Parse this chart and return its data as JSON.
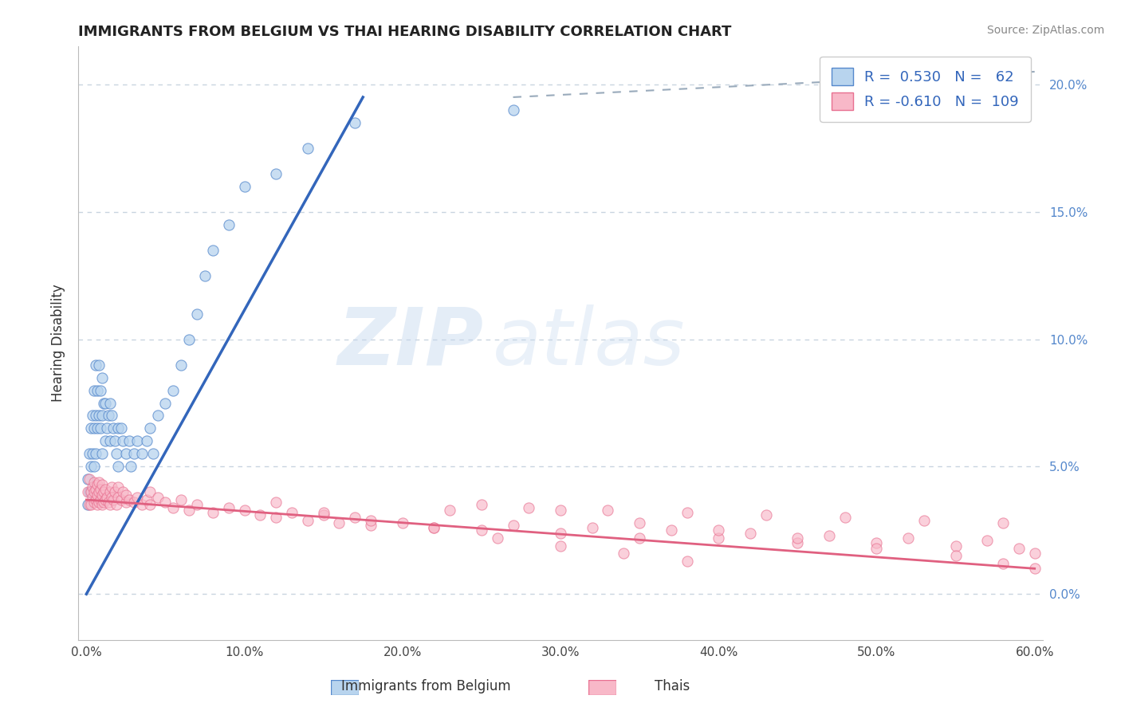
{
  "title": "IMMIGRANTS FROM BELGIUM VS THAI HEARING DISABILITY CORRELATION CHART",
  "source": "Source: ZipAtlas.com",
  "ylabel": "Hearing Disability",
  "legend_label1": "Immigrants from Belgium",
  "legend_label2": "Thais",
  "R1": "0.530",
  "N1": "62",
  "R2": "-0.610",
  "N2": "109",
  "xlim": [
    -0.005,
    0.605
  ],
  "ylim": [
    -0.018,
    0.215
  ],
  "xticks": [
    0.0,
    0.1,
    0.2,
    0.3,
    0.4,
    0.5,
    0.6
  ],
  "yticks": [
    0.0,
    0.05,
    0.1,
    0.15,
    0.2
  ],
  "ytick_labels_right": [
    "0.0%",
    "5.0%",
    "10.0%",
    "15.0%",
    "20.0%"
  ],
  "color_blue_fill": "#b8d4ee",
  "color_pink_fill": "#f8b8c8",
  "color_blue_edge": "#5588cc",
  "color_pink_edge": "#e87090",
  "color_blue_line": "#3366bb",
  "color_pink_line": "#e06080",
  "color_dashed": "#99aabb",
  "background_color": "#ffffff",
  "grid_color": "#c8d4e0",
  "watermark_zip": "ZIP",
  "watermark_atlas": "atlas",
  "blue_scatter_x": [
    0.001,
    0.001,
    0.002,
    0.002,
    0.003,
    0.003,
    0.003,
    0.004,
    0.004,
    0.005,
    0.005,
    0.005,
    0.006,
    0.006,
    0.006,
    0.007,
    0.007,
    0.008,
    0.008,
    0.009,
    0.009,
    0.01,
    0.01,
    0.01,
    0.011,
    0.012,
    0.012,
    0.013,
    0.014,
    0.015,
    0.015,
    0.016,
    0.017,
    0.018,
    0.019,
    0.02,
    0.02,
    0.022,
    0.023,
    0.025,
    0.027,
    0.028,
    0.03,
    0.032,
    0.035,
    0.038,
    0.04,
    0.042,
    0.045,
    0.05,
    0.055,
    0.06,
    0.065,
    0.07,
    0.075,
    0.08,
    0.09,
    0.1,
    0.12,
    0.14,
    0.17,
    0.27
  ],
  "blue_scatter_y": [
    0.045,
    0.035,
    0.055,
    0.04,
    0.065,
    0.05,
    0.04,
    0.07,
    0.055,
    0.08,
    0.065,
    0.05,
    0.09,
    0.07,
    0.055,
    0.08,
    0.065,
    0.09,
    0.07,
    0.08,
    0.065,
    0.085,
    0.07,
    0.055,
    0.075,
    0.06,
    0.075,
    0.065,
    0.07,
    0.06,
    0.075,
    0.07,
    0.065,
    0.06,
    0.055,
    0.065,
    0.05,
    0.065,
    0.06,
    0.055,
    0.06,
    0.05,
    0.055,
    0.06,
    0.055,
    0.06,
    0.065,
    0.055,
    0.07,
    0.075,
    0.08,
    0.09,
    0.1,
    0.11,
    0.125,
    0.135,
    0.145,
    0.16,
    0.165,
    0.175,
    0.185,
    0.19
  ],
  "pink_scatter_x": [
    0.001,
    0.002,
    0.002,
    0.003,
    0.003,
    0.004,
    0.004,
    0.005,
    0.005,
    0.005,
    0.006,
    0.006,
    0.007,
    0.007,
    0.007,
    0.008,
    0.008,
    0.008,
    0.009,
    0.009,
    0.01,
    0.01,
    0.01,
    0.011,
    0.011,
    0.012,
    0.012,
    0.013,
    0.014,
    0.015,
    0.015,
    0.016,
    0.016,
    0.017,
    0.018,
    0.019,
    0.02,
    0.02,
    0.022,
    0.023,
    0.025,
    0.025,
    0.027,
    0.03,
    0.032,
    0.035,
    0.038,
    0.04,
    0.04,
    0.045,
    0.05,
    0.055,
    0.06,
    0.065,
    0.07,
    0.08,
    0.09,
    0.1,
    0.11,
    0.12,
    0.13,
    0.14,
    0.15,
    0.16,
    0.17,
    0.18,
    0.2,
    0.22,
    0.23,
    0.25,
    0.27,
    0.28,
    0.3,
    0.32,
    0.33,
    0.35,
    0.37,
    0.38,
    0.4,
    0.42,
    0.43,
    0.45,
    0.47,
    0.48,
    0.5,
    0.52,
    0.53,
    0.55,
    0.57,
    0.58,
    0.59,
    0.6,
    0.25,
    0.3,
    0.35,
    0.4,
    0.45,
    0.5,
    0.55,
    0.58,
    0.6,
    0.12,
    0.15,
    0.18,
    0.22,
    0.26,
    0.3,
    0.34,
    0.38
  ],
  "pink_scatter_y": [
    0.04,
    0.035,
    0.045,
    0.035,
    0.04,
    0.038,
    0.042,
    0.036,
    0.04,
    0.044,
    0.037,
    0.041,
    0.035,
    0.039,
    0.043,
    0.036,
    0.04,
    0.044,
    0.037,
    0.041,
    0.035,
    0.039,
    0.043,
    0.036,
    0.04,
    0.037,
    0.041,
    0.038,
    0.036,
    0.04,
    0.035,
    0.038,
    0.042,
    0.037,
    0.04,
    0.035,
    0.038,
    0.042,
    0.037,
    0.04,
    0.036,
    0.039,
    0.037,
    0.036,
    0.038,
    0.035,
    0.037,
    0.04,
    0.035,
    0.038,
    0.036,
    0.034,
    0.037,
    0.033,
    0.035,
    0.032,
    0.034,
    0.033,
    0.031,
    0.03,
    0.032,
    0.029,
    0.031,
    0.028,
    0.03,
    0.027,
    0.028,
    0.026,
    0.033,
    0.025,
    0.027,
    0.034,
    0.024,
    0.026,
    0.033,
    0.022,
    0.025,
    0.032,
    0.022,
    0.024,
    0.031,
    0.02,
    0.023,
    0.03,
    0.02,
    0.022,
    0.029,
    0.019,
    0.021,
    0.028,
    0.018,
    0.016,
    0.035,
    0.033,
    0.028,
    0.025,
    0.022,
    0.018,
    0.015,
    0.012,
    0.01,
    0.036,
    0.032,
    0.029,
    0.026,
    0.022,
    0.019,
    0.016,
    0.013
  ]
}
